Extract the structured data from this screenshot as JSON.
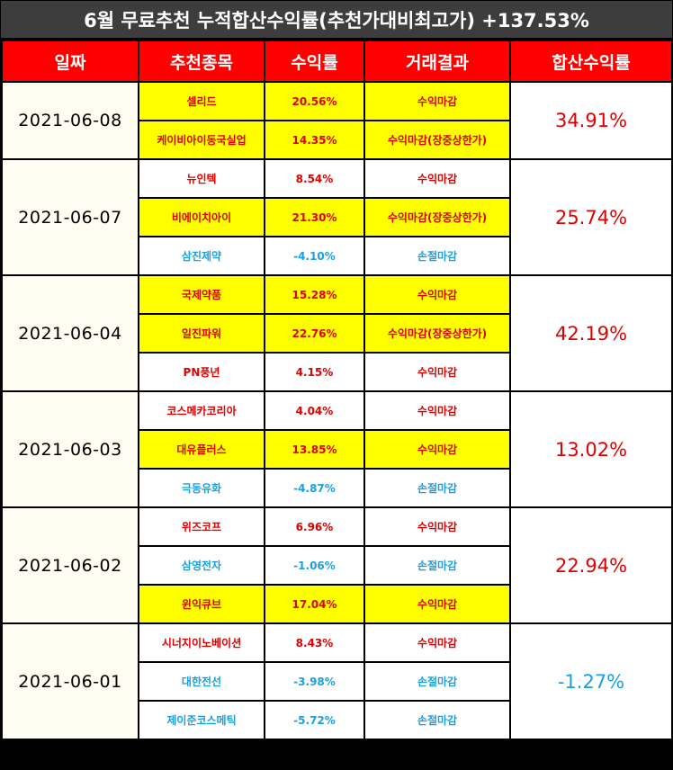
{
  "title": "6월 무료추천 누적합산수익률(추천가대비최고가) +137.53%",
  "headers": [
    "일짜",
    "추천종목",
    "수익률",
    "거래결과",
    "합산수익률"
  ],
  "colors": {
    "header_bg": "#ff0000",
    "highlight": "#ffff00",
    "profit": "#e00000",
    "loss": "#1aa0e0",
    "title_bg": "#3d3d3d"
  },
  "groups": [
    {
      "date": "2021-06-08",
      "total": "34.91%",
      "total_color": "red",
      "rows": [
        {
          "stock": "셀리드",
          "rate": "20.56%",
          "result": "수익마감",
          "highlight": true,
          "color": "red"
        },
        {
          "stock": "케이비아이동국실업",
          "rate": "14.35%",
          "result": "수익마감(장중상한가)",
          "highlight": true,
          "color": "red"
        }
      ]
    },
    {
      "date": "2021-06-07",
      "total": "25.74%",
      "total_color": "red",
      "rows": [
        {
          "stock": "뉴인텍",
          "rate": "8.54%",
          "result": "수익마감",
          "highlight": false,
          "color": "red"
        },
        {
          "stock": "비에이치아이",
          "rate": "21.30%",
          "result": "수익마감(장중상한가)",
          "highlight": true,
          "color": "red"
        },
        {
          "stock": "삼진제약",
          "rate": "-4.10%",
          "result": "손절마감",
          "highlight": false,
          "color": "blue"
        }
      ]
    },
    {
      "date": "2021-06-04",
      "total": "42.19%",
      "total_color": "red",
      "rows": [
        {
          "stock": "국제약품",
          "rate": "15.28%",
          "result": "수익마감",
          "highlight": true,
          "color": "red"
        },
        {
          "stock": "일진파워",
          "rate": "22.76%",
          "result": "수익마감(장중상한가)",
          "highlight": true,
          "color": "red"
        },
        {
          "stock": "PN풍년",
          "rate": "4.15%",
          "result": "수익마감",
          "highlight": false,
          "color": "red"
        }
      ]
    },
    {
      "date": "2021-06-03",
      "total": "13.02%",
      "total_color": "red",
      "rows": [
        {
          "stock": "코스메카코리아",
          "rate": "4.04%",
          "result": "수익마감",
          "highlight": false,
          "color": "red"
        },
        {
          "stock": "대유플러스",
          "rate": "13.85%",
          "result": "수익마감",
          "highlight": true,
          "color": "red"
        },
        {
          "stock": "극동유화",
          "rate": "-4.87%",
          "result": "손절마감",
          "highlight": false,
          "color": "blue"
        }
      ]
    },
    {
      "date": "2021-06-02",
      "total": "22.94%",
      "total_color": "red",
      "rows": [
        {
          "stock": "위즈코프",
          "rate": "6.96%",
          "result": "수익마감",
          "highlight": false,
          "color": "red"
        },
        {
          "stock": "삼영전자",
          "rate": "-1.06%",
          "result": "손절마감",
          "highlight": false,
          "color": "blue"
        },
        {
          "stock": "윈익큐브",
          "rate": "17.04%",
          "result": "수익마감",
          "highlight": true,
          "color": "red"
        }
      ]
    },
    {
      "date": "2021-06-01",
      "total": "-1.27%",
      "total_color": "blue",
      "rows": [
        {
          "stock": "시너지이노베이션",
          "rate": "8.43%",
          "result": "수익마감",
          "highlight": false,
          "color": "red"
        },
        {
          "stock": "대한전선",
          "rate": "-3.98%",
          "result": "손절마감",
          "highlight": false,
          "color": "blue"
        },
        {
          "stock": "제이준코스메틱",
          "rate": "-5.72%",
          "result": "손절마감",
          "highlight": false,
          "color": "blue"
        }
      ]
    }
  ]
}
